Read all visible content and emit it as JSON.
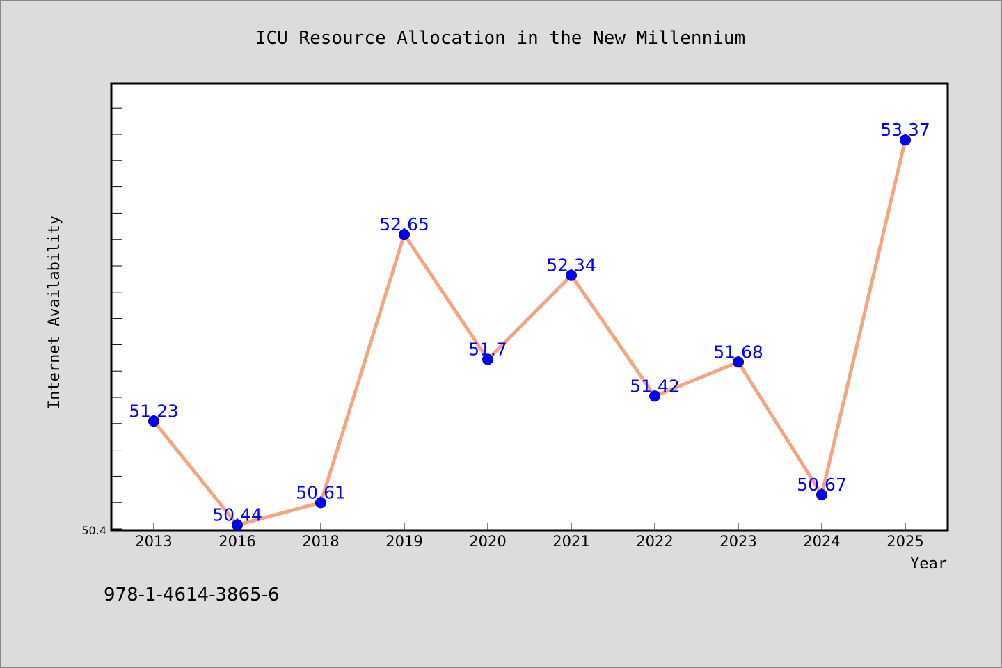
{
  "chart_data": {
    "type": "line",
    "title": "ICU Resource Allocation in the New Millennium",
    "xlabel": "Year",
    "ylabel": "Internet Availability",
    "categories": [
      "2013",
      "2016",
      "2018",
      "2019",
      "2020",
      "2021",
      "2022",
      "2023",
      "2024",
      "2025"
    ],
    "series": [
      {
        "values": [
          51.23,
          50.44,
          50.61,
          52.65,
          51.7,
          52.34,
          51.42,
          51.68,
          50.67,
          53.37
        ],
        "line_color": "#f4a582",
        "marker_color": "#0000ff"
      }
    ],
    "data_labels": [
      "51.23",
      "50.44",
      "50.61",
      "52.65",
      "51.7",
      "52.34",
      "51.42",
      "51.68",
      "50.67",
      "53.37"
    ],
    "ylim": [
      50.4,
      53.8
    ],
    "y_min_label": "50.4",
    "grid": false,
    "legend": "none",
    "label_color": "#0000ff",
    "background_color": "#dcdcdc",
    "plot_background_color": "#ffffff"
  },
  "footer": {
    "isbn": "978-1-4614-3865-6"
  }
}
